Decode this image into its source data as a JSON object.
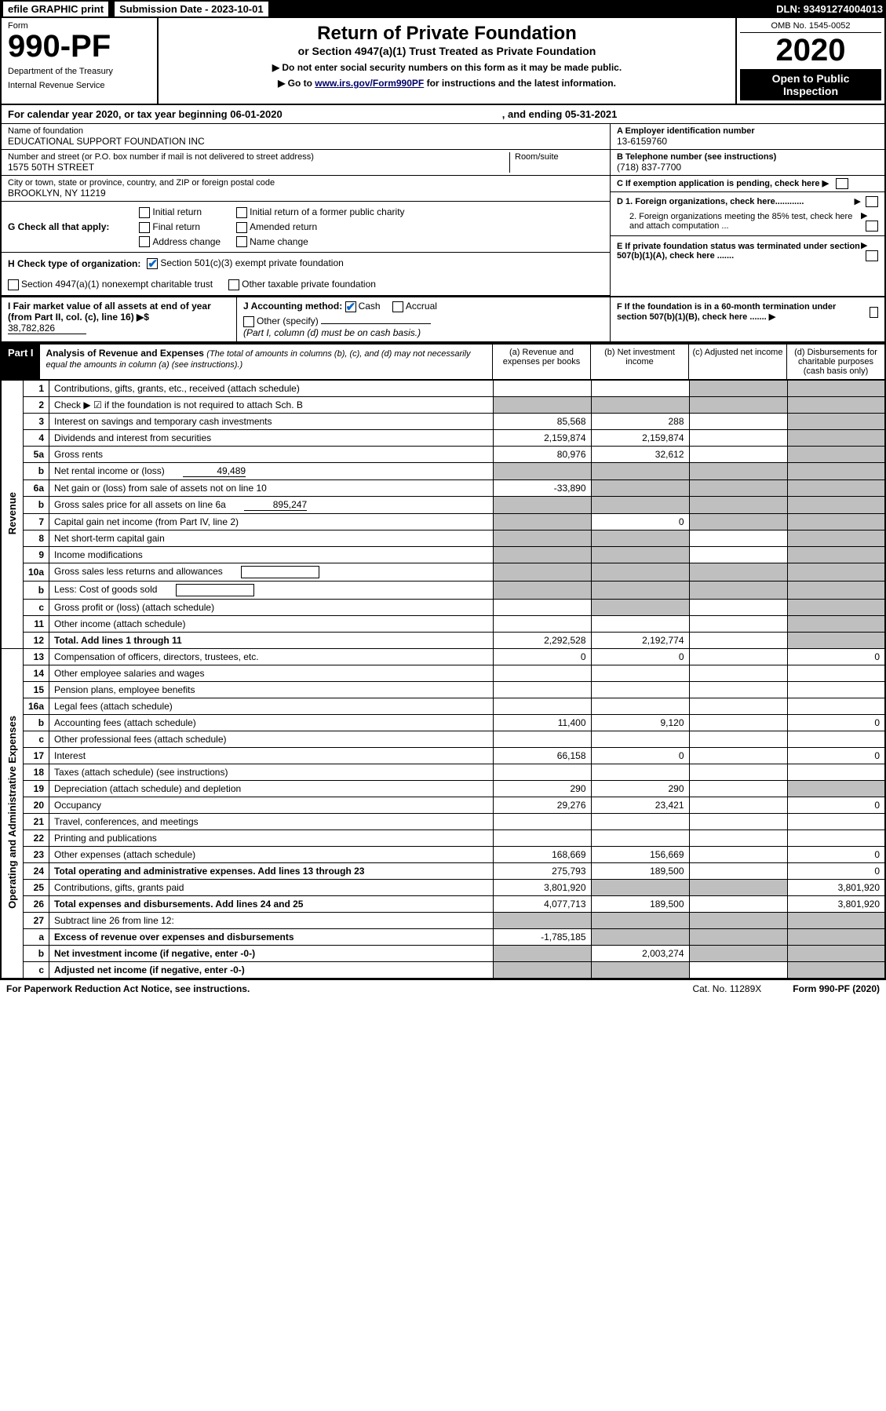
{
  "topbar": {
    "efile": "efile GRAPHIC print",
    "submission_label": "Submission Date - 2023-10-01",
    "dln": "DLN: 93491274004013"
  },
  "header": {
    "form_label": "Form",
    "form_number": "990-PF",
    "dept": "Department of the Treasury",
    "irs": "Internal Revenue Service",
    "title": "Return of Private Foundation",
    "subtitle": "or Section 4947(a)(1) Trust Treated as Private Foundation",
    "note1": "▶ Do not enter social security numbers on this form as it may be made public.",
    "note2_pre": "▶ Go to ",
    "note2_link": "www.irs.gov/Form990PF",
    "note2_post": " for instructions and the latest information.",
    "omb": "OMB No. 1545-0052",
    "year": "2020",
    "open": "Open to Public Inspection"
  },
  "calendar": {
    "text": "For calendar year 2020, or tax year beginning 06-01-2020",
    "end": ", and ending 05-31-2021"
  },
  "info": {
    "name_label": "Name of foundation",
    "name": "EDUCATIONAL SUPPORT FOUNDATION INC",
    "addr_label": "Number and street (or P.O. box number if mail is not delivered to street address)",
    "addr": "1575 50TH STREET",
    "room_label": "Room/suite",
    "city_label": "City or town, state or province, country, and ZIP or foreign postal code",
    "city": "BROOKLYN, NY  11219",
    "ein_label": "A Employer identification number",
    "ein": "13-6159760",
    "phone_label": "B Telephone number (see instructions)",
    "phone": "(718) 837-7700",
    "c_label": "C If exemption application is pending, check here ▶"
  },
  "g": {
    "label": "G Check all that apply:",
    "initial": "Initial return",
    "initial_former": "Initial return of a former public charity",
    "final": "Final return",
    "amended": "Amended return",
    "address": "Address change",
    "name_change": "Name change"
  },
  "d": {
    "d1": "D 1. Foreign organizations, check here............",
    "d2": "2. Foreign organizations meeting the 85% test, check here and attach computation ...",
    "e": "E  If private foundation status was terminated under section 507(b)(1)(A), check here .......",
    "f": "F  If the foundation is in a 60-month termination under section 507(b)(1)(B), check here .......  ▶"
  },
  "h": {
    "label": "H Check type of organization:",
    "501c3": "Section 501(c)(3) exempt private foundation",
    "4947": "Section 4947(a)(1) nonexempt charitable trust",
    "other_tax": "Other taxable private foundation"
  },
  "i": {
    "label": "I Fair market value of all assets at end of year (from Part II, col. (c), line 16) ▶$",
    "value": "38,782,826"
  },
  "j": {
    "label": "J Accounting method:",
    "cash": "Cash",
    "accrual": "Accrual",
    "other": "Other (specify)",
    "note": "(Part I, column (d) must be on cash basis.)"
  },
  "part1": {
    "label": "Part I",
    "title": "Analysis of Revenue and Expenses",
    "subtitle": "(The total of amounts in columns (b), (c), and (d) may not necessarily equal the amounts in column (a) (see instructions).)",
    "col_a": "(a) Revenue and expenses per books",
    "col_b": "(b) Net investment income",
    "col_c": "(c) Adjusted net income",
    "col_d": "(d) Disbursements for charitable purposes (cash basis only)"
  },
  "side_labels": {
    "revenue": "Revenue",
    "expenses": "Operating and Administrative Expenses"
  },
  "rows": [
    {
      "n": "1",
      "desc": "Contributions, gifts, grants, etc., received (attach schedule)",
      "a": "",
      "b": "",
      "c": "grey",
      "d": "grey"
    },
    {
      "n": "2",
      "desc": "Check ▶ ☑ if the foundation is not required to attach Sch. B",
      "a": "grey",
      "b": "grey",
      "c": "grey",
      "d": "grey",
      "check": true
    },
    {
      "n": "3",
      "desc": "Interest on savings and temporary cash investments",
      "a": "85,568",
      "b": "288",
      "c": "",
      "d": "grey"
    },
    {
      "n": "4",
      "desc": "Dividends and interest from securities",
      "a": "2,159,874",
      "b": "2,159,874",
      "c": "",
      "d": "grey"
    },
    {
      "n": "5a",
      "desc": "Gross rents",
      "a": "80,976",
      "b": "32,612",
      "c": "",
      "d": "grey"
    },
    {
      "n": "b",
      "desc": "Net rental income or (loss)",
      "inline": "49,489",
      "a": "grey",
      "b": "grey",
      "c": "grey",
      "d": "grey"
    },
    {
      "n": "6a",
      "desc": "Net gain or (loss) from sale of assets not on line 10",
      "a": "-33,890",
      "b": "grey",
      "c": "grey",
      "d": "grey"
    },
    {
      "n": "b",
      "desc": "Gross sales price for all assets on line 6a",
      "inline": "895,247",
      "a": "grey",
      "b": "grey",
      "c": "grey",
      "d": "grey"
    },
    {
      "n": "7",
      "desc": "Capital gain net income (from Part IV, line 2)",
      "a": "grey",
      "b": "0",
      "c": "grey",
      "d": "grey"
    },
    {
      "n": "8",
      "desc": "Net short-term capital gain",
      "a": "grey",
      "b": "grey",
      "c": "",
      "d": "grey"
    },
    {
      "n": "9",
      "desc": "Income modifications",
      "a": "grey",
      "b": "grey",
      "c": "",
      "d": "grey"
    },
    {
      "n": "10a",
      "desc": "Gross sales less returns and allowances",
      "box": true,
      "a": "grey",
      "b": "grey",
      "c": "grey",
      "d": "grey"
    },
    {
      "n": "b",
      "desc": "Less: Cost of goods sold",
      "box": true,
      "a": "grey",
      "b": "grey",
      "c": "grey",
      "d": "grey"
    },
    {
      "n": "c",
      "desc": "Gross profit or (loss) (attach schedule)",
      "a": "",
      "b": "grey",
      "c": "",
      "d": "grey"
    },
    {
      "n": "11",
      "desc": "Other income (attach schedule)",
      "a": "",
      "b": "",
      "c": "",
      "d": "grey"
    },
    {
      "n": "12",
      "desc": "Total. Add lines 1 through 11",
      "bold": true,
      "a": "2,292,528",
      "b": "2,192,774",
      "c": "",
      "d": "grey"
    },
    {
      "n": "13",
      "desc": "Compensation of officers, directors, trustees, etc.",
      "a": "0",
      "b": "0",
      "c": "",
      "d": "0"
    },
    {
      "n": "14",
      "desc": "Other employee salaries and wages",
      "a": "",
      "b": "",
      "c": "",
      "d": ""
    },
    {
      "n": "15",
      "desc": "Pension plans, employee benefits",
      "a": "",
      "b": "",
      "c": "",
      "d": ""
    },
    {
      "n": "16a",
      "desc": "Legal fees (attach schedule)",
      "a": "",
      "b": "",
      "c": "",
      "d": ""
    },
    {
      "n": "b",
      "desc": "Accounting fees (attach schedule)",
      "a": "11,400",
      "b": "9,120",
      "c": "",
      "d": "0"
    },
    {
      "n": "c",
      "desc": "Other professional fees (attach schedule)",
      "a": "",
      "b": "",
      "c": "",
      "d": ""
    },
    {
      "n": "17",
      "desc": "Interest",
      "a": "66,158",
      "b": "0",
      "c": "",
      "d": "0"
    },
    {
      "n": "18",
      "desc": "Taxes (attach schedule) (see instructions)",
      "a": "",
      "b": "",
      "c": "",
      "d": ""
    },
    {
      "n": "19",
      "desc": "Depreciation (attach schedule) and depletion",
      "a": "290",
      "b": "290",
      "c": "",
      "d": "grey"
    },
    {
      "n": "20",
      "desc": "Occupancy",
      "a": "29,276",
      "b": "23,421",
      "c": "",
      "d": "0"
    },
    {
      "n": "21",
      "desc": "Travel, conferences, and meetings",
      "a": "",
      "b": "",
      "c": "",
      "d": ""
    },
    {
      "n": "22",
      "desc": "Printing and publications",
      "a": "",
      "b": "",
      "c": "",
      "d": ""
    },
    {
      "n": "23",
      "desc": "Other expenses (attach schedule)",
      "a": "168,669",
      "b": "156,669",
      "c": "",
      "d": "0"
    },
    {
      "n": "24",
      "desc": "Total operating and administrative expenses. Add lines 13 through 23",
      "bold": true,
      "a": "275,793",
      "b": "189,500",
      "c": "",
      "d": "0"
    },
    {
      "n": "25",
      "desc": "Contributions, gifts, grants paid",
      "a": "3,801,920",
      "b": "grey",
      "c": "grey",
      "d": "3,801,920"
    },
    {
      "n": "26",
      "desc": "Total expenses and disbursements. Add lines 24 and 25",
      "bold": true,
      "a": "4,077,713",
      "b": "189,500",
      "c": "",
      "d": "3,801,920"
    },
    {
      "n": "27",
      "desc": "Subtract line 26 from line 12:",
      "a": "grey",
      "b": "grey",
      "c": "grey",
      "d": "grey"
    },
    {
      "n": "a",
      "desc": "Excess of revenue over expenses and disbursements",
      "bold": true,
      "a": "-1,785,185",
      "b": "grey",
      "c": "grey",
      "d": "grey"
    },
    {
      "n": "b",
      "desc": "Net investment income (if negative, enter -0-)",
      "bold": true,
      "a": "grey",
      "b": "2,003,274",
      "c": "grey",
      "d": "grey"
    },
    {
      "n": "c",
      "desc": "Adjusted net income (if negative, enter -0-)",
      "bold": true,
      "a": "grey",
      "b": "grey",
      "c": "",
      "d": "grey"
    }
  ],
  "footer": {
    "paperwork": "For Paperwork Reduction Act Notice, see instructions.",
    "cat": "Cat. No. 11289X",
    "form": "Form 990-PF (2020)"
  }
}
